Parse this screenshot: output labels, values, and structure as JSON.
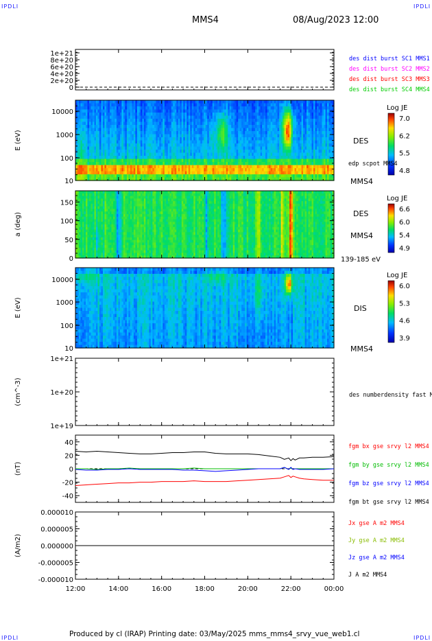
{
  "header": {
    "logo_left": "IPDLI",
    "logo_right": "IPDLI",
    "spacecraft": "MMS4",
    "datetime": "08/Aug/2023 12:00"
  },
  "footer": {
    "text": "Produced by cl (IRAP)   Printing date: 03/May/2025   mms_mms4_srvy_vue_web1.cl",
    "logo_left": "IPDLI",
    "logo_right": "IPDLI"
  },
  "colors": {
    "mms1": "#0000ff",
    "mms2": "#ff00ff",
    "mms3": "#ff0000",
    "mms4": "#00cc00",
    "bx": "#ff0000",
    "by": "#00bb00",
    "bz": "#0000ff",
    "bt": "#000000",
    "jx": "#ff0000",
    "jy": "#88bb00",
    "jz": "#0000ff",
    "j": "#000000"
  },
  "x_axis": {
    "ticks": [
      "12:00",
      "14:00",
      "16:00",
      "18:00",
      "20:00",
      "22:00",
      "00:00"
    ],
    "range_hours": [
      12,
      24
    ]
  },
  "chart_data": [
    {
      "id": "des-dist",
      "type": "line",
      "yticks": [
        "1e+21",
        "8e+20",
        "6e+20",
        "4e+20",
        "2e+20",
        "0"
      ],
      "ylim": [
        0,
        1.1e+21
      ],
      "series": [
        {
          "name": "des dist burst SC1 MMS1",
          "color_key": "mms1"
        },
        {
          "name": "des dist burst SC2 MMS2",
          "color_key": "mms2"
        },
        {
          "name": "des dist burst SC3 MMS3",
          "color_key": "mms3"
        },
        {
          "name": "des dist burst SC4 MMS4",
          "color_key": "mms4"
        }
      ],
      "dashed_zero": true
    },
    {
      "id": "des-energy",
      "type": "heatmap",
      "ylabel": "E (eV)",
      "yscale": "log",
      "yticks": [
        "10000",
        "1000",
        "100",
        "10"
      ],
      "instrument": "DES",
      "overlay_label": "edp scpot MMS4",
      "spacecraft": "MMS4",
      "colorbar": {
        "title": "Log JE",
        "ticks": [
          "7.0",
          "6.2",
          "5.5",
          "4.8"
        ]
      }
    },
    {
      "id": "des-pitch",
      "type": "heatmap",
      "ylabel": "a (deg)",
      "yticks": [
        "150",
        "100",
        "50",
        "0"
      ],
      "ylim": [
        0,
        180
      ],
      "instrument": "DES",
      "spacecraft": "MMS4",
      "energy_range": "139-185 eV",
      "colorbar": {
        "title": "Log JE",
        "ticks": [
          "6.6",
          "6.0",
          "5.4",
          "4.9"
        ]
      }
    },
    {
      "id": "dis-energy",
      "type": "heatmap",
      "ylabel": "E (eV)",
      "yscale": "log",
      "yticks": [
        "10000",
        "1000",
        "100",
        "10"
      ],
      "instrument": "DIS",
      "spacecraft": "MMS4",
      "colorbar": {
        "title": "Log JE",
        "ticks": [
          "6.0",
          "5.3",
          "4.6",
          "3.9"
        ]
      }
    },
    {
      "id": "des-density",
      "type": "line",
      "ylabel": "(cm^-3)",
      "yscale": "log",
      "yticks": [
        "1e+21",
        "1e+20",
        "1e+19"
      ],
      "series": [
        {
          "name": "des numberdensity fast M"
        }
      ]
    },
    {
      "id": "fgm",
      "type": "line",
      "ylabel": "(nT)",
      "yticks": [
        "40",
        "20",
        "0",
        "-20",
        "-40"
      ],
      "ylim": [
        -50,
        50
      ],
      "dashed_zero": true,
      "x": [
        12.0,
        12.5,
        13.0,
        13.5,
        14.0,
        14.5,
        15.0,
        15.5,
        16.0,
        16.5,
        17.0,
        17.5,
        18.0,
        18.5,
        19.0,
        19.5,
        20.0,
        20.5,
        21.0,
        21.5,
        21.7,
        21.9,
        22.0,
        22.1,
        22.2,
        22.4,
        22.6,
        23.0,
        23.5,
        24.0
      ],
      "series": [
        {
          "name": "fgm bx gse srvy l2 MMS4",
          "color_key": "bx",
          "values": [
            -25,
            -24,
            -23,
            -22,
            -21,
            -21,
            -20,
            -20,
            -19,
            -19,
            -19,
            -18,
            -19,
            -19,
            -19,
            -18,
            -17,
            -16,
            -15,
            -14,
            -12,
            -10,
            -13,
            -11,
            -12,
            -14,
            -15,
            -16,
            -17,
            -17
          ]
        },
        {
          "name": "fgm by gse srvy l2 MMS4",
          "color_key": "by",
          "values": [
            0,
            0,
            -1,
            0,
            0,
            1,
            0,
            0,
            0,
            0,
            0,
            1,
            0,
            0,
            0,
            0,
            0,
            0,
            0,
            0,
            2,
            -1,
            1,
            -1,
            0,
            0,
            0,
            0,
            0,
            0
          ]
        },
        {
          "name": "fgm bz gse srvy l2 MMS4",
          "color_key": "bz",
          "values": [
            -1,
            -2,
            -2,
            -1,
            -1,
            0,
            -1,
            -1,
            -1,
            -1,
            -2,
            -2,
            -3,
            -4,
            -3,
            -2,
            -1,
            0,
            0,
            0,
            2,
            -1,
            2,
            -1,
            0,
            -1,
            -1,
            -1,
            -1,
            0
          ]
        },
        {
          "name": "fgm bt gse srvy l2 MMS4",
          "color_key": "bt",
          "values": [
            26,
            25,
            26,
            25,
            24,
            23,
            22,
            22,
            23,
            24,
            24,
            25,
            25,
            23,
            22,
            22,
            22,
            21,
            19,
            17,
            14,
            16,
            12,
            15,
            13,
            16,
            16,
            17,
            17,
            18
          ]
        }
      ]
    },
    {
      "id": "current",
      "type": "line",
      "ylabel": "(A/m2)",
      "yticks": [
        "0.000010",
        "0.000005",
        "0.000000",
        "-0.000005",
        "-0.000010"
      ],
      "ylim": [
        -1e-05,
        1e-05
      ],
      "x": [
        12,
        24
      ],
      "series": [
        {
          "name": "Jx gse A m2 MMS4",
          "color_key": "jx",
          "values": [
            0,
            0
          ]
        },
        {
          "name": "Jy gse A m2 MMS4",
          "color_key": "jy",
          "values": [
            0,
            0
          ]
        },
        {
          "name": "Jz gse A m2 MMS4",
          "color_key": "jz",
          "values": [
            0,
            0
          ]
        },
        {
          "name": "J A m2 MMS4",
          "color_key": "j",
          "values": [
            0,
            0
          ]
        }
      ]
    }
  ]
}
